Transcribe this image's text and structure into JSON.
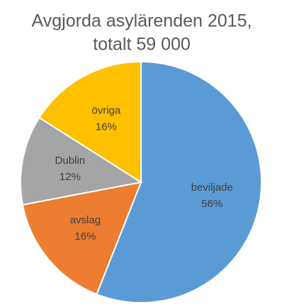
{
  "chart_data": {
    "type": "pie",
    "title": [
      "Avgjorda asylärenden 2015,",
      "totalt 59 000"
    ],
    "categories": [
      "beviljade",
      "avslag",
      "Dublin",
      "övriga"
    ],
    "values": [
      56,
      16,
      12,
      16
    ],
    "value_labels": [
      "56%",
      "16%",
      "12%",
      "16%"
    ],
    "colors": [
      "#5b9bd5",
      "#ed7d31",
      "#a5a5a5",
      "#ffc000"
    ]
  }
}
